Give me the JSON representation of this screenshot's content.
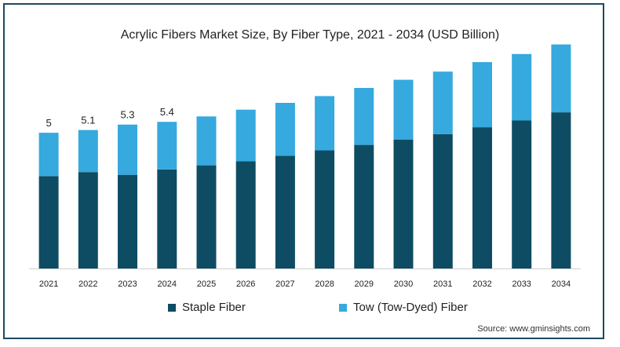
{
  "chart_data": {
    "type": "bar",
    "stacked": true,
    "title": "Acrylic Fibers Market Size, By Fiber Type, 2021 - 2034 (USD Billion)",
    "categories": [
      "2021",
      "2022",
      "2023",
      "2024",
      "2025",
      "2026",
      "2027",
      "2028",
      "2029",
      "2030",
      "2031",
      "2032",
      "2033",
      "2034"
    ],
    "series": [
      {
        "name": "Staple Fiber",
        "color": "#0e4c63",
        "values": [
          3.4,
          3.55,
          3.45,
          3.65,
          3.8,
          3.95,
          4.15,
          4.35,
          4.55,
          4.75,
          4.95,
          5.2,
          5.45,
          5.75
        ]
      },
      {
        "name": "Tow (Tow-Dyed) Fiber",
        "color": "#36a9de",
        "values": [
          1.6,
          1.55,
          1.85,
          1.75,
          1.8,
          1.9,
          1.95,
          2.0,
          2.1,
          2.2,
          2.3,
          2.4,
          2.45,
          2.5
        ]
      }
    ],
    "data_labels": [
      {
        "category": "2021",
        "text": "5"
      },
      {
        "category": "2022",
        "text": "5.1"
      },
      {
        "category": "2023",
        "text": "5.3"
      },
      {
        "category": "2024",
        "text": "5.4"
      }
    ],
    "ylim": [
      0,
      8.5
    ],
    "grid": false,
    "legend_position": "bottom"
  },
  "source": "Source: www.gminsights.com"
}
